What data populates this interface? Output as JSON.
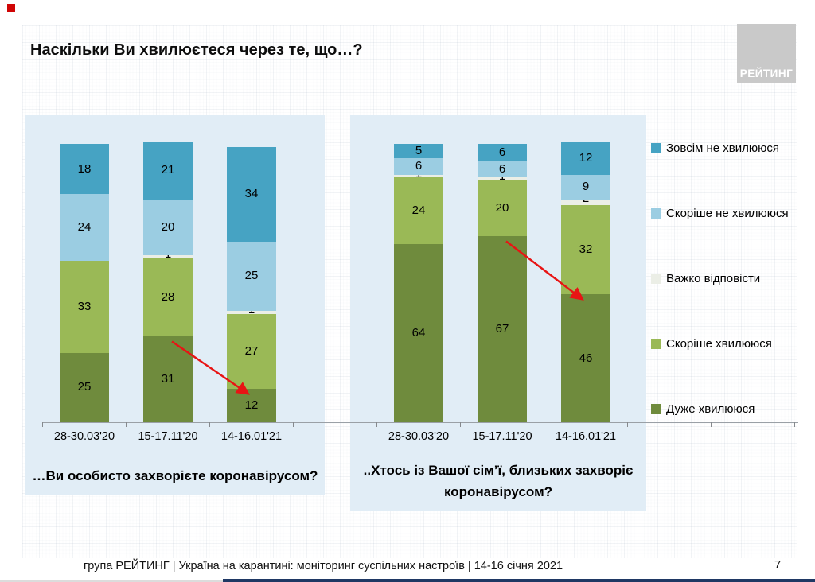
{
  "slide": {
    "title": "Наскільки Ви хвилюєтеся через те, що…?",
    "logo_text": "РЕЙТИНГ",
    "footer": "група РЕЙТИНГ | Україна на карантині: моніторинг суспільних настроїв | 14-16 січня 2021",
    "page_number": "7"
  },
  "colors": {
    "very_worried": "#6f8b3d",
    "rather_worried": "#9ab956",
    "hard_to_say": "#ebeee6",
    "rather_not_worried": "#9bcde2",
    "not_worried_at_all": "#46a3c3",
    "arrow": "#e81414",
    "panel_background": "#e1edf6",
    "axis": "#9aa0a6",
    "logo_box": "#c9c9c9"
  },
  "legend": [
    {
      "label": "Зовсім не хвилююся",
      "color_key": "not_worried_at_all"
    },
    {
      "label": "Скоріше не хвилююся",
      "color_key": "rather_not_worried"
    },
    {
      "label": "Важко відповісти",
      "color_key": "hard_to_say"
    },
    {
      "label": "Скоріше хвилююся",
      "color_key": "rather_worried"
    },
    {
      "label": "Дуже хвилююся",
      "color_key": "very_worried"
    }
  ],
  "chart_data": [
    {
      "type": "bar",
      "stacked": true,
      "caption": "…Ви особисто захворієте коронавірусом?",
      "categories": [
        "28-30.03'20",
        "15-17.11'20",
        "14-16.01'21"
      ],
      "series": [
        {
          "name": "Дуже хвилююся",
          "color_key": "very_worried",
          "values": [
            25,
            31,
            12
          ]
        },
        {
          "name": "Скоріше хвилююся",
          "color_key": "rather_worried",
          "values": [
            33,
            28,
            27
          ]
        },
        {
          "name": "Важко відповісти",
          "color_key": "hard_to_say",
          "values": [
            0,
            1,
            1
          ]
        },
        {
          "name": "Скоріше не хвилююся",
          "color_key": "rather_not_worried",
          "values": [
            24,
            20,
            25
          ]
        },
        {
          "name": "Зовсім не хвилююся",
          "color_key": "not_worried_at_all",
          "values": [
            18,
            21,
            34
          ]
        }
      ],
      "ylim": [
        0,
        100
      ],
      "grid": false,
      "legend_position": "right",
      "annotation_arrow": {
        "series": "Дуже хвилююся",
        "from_category": "15-17.11'20",
        "to_category": "14-16.01'21"
      }
    },
    {
      "type": "bar",
      "stacked": true,
      "caption": "..Хтось із Вашої сім’ї, близьких захворіє коронавірусом?",
      "categories": [
        "28-30.03'20",
        "15-17.11'20",
        "14-16.01'21"
      ],
      "series": [
        {
          "name": "Дуже хвилююся",
          "color_key": "very_worried",
          "values": [
            64,
            67,
            46
          ]
        },
        {
          "name": "Скоріше хвилююся",
          "color_key": "rather_worried",
          "values": [
            24,
            20,
            32
          ]
        },
        {
          "name": "Важко відповісти",
          "color_key": "hard_to_say",
          "values": [
            1,
            1,
            2
          ]
        },
        {
          "name": "Скоріше не хвилююся",
          "color_key": "rather_not_worried",
          "values": [
            6,
            6,
            9
          ]
        },
        {
          "name": "Зовсім не хвилююся",
          "color_key": "not_worried_at_all",
          "values": [
            5,
            6,
            12
          ]
        }
      ],
      "ylim": [
        0,
        100
      ],
      "grid": false,
      "legend_position": "right",
      "annotation_arrow": {
        "series": "Дуже хвилююся",
        "from_category": "15-17.11'20",
        "to_category": "14-16.01'21"
      }
    }
  ]
}
